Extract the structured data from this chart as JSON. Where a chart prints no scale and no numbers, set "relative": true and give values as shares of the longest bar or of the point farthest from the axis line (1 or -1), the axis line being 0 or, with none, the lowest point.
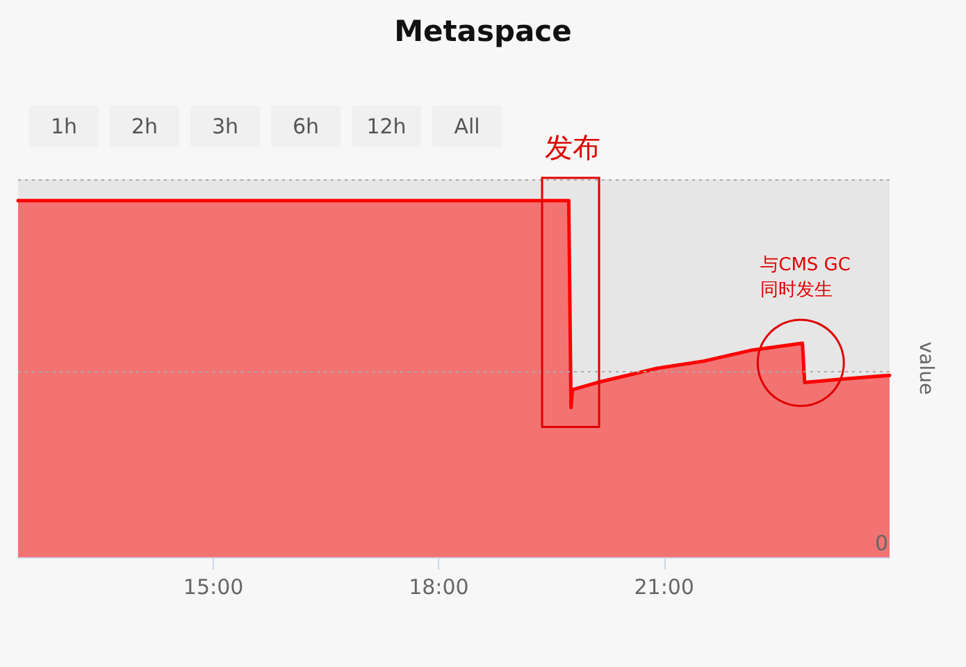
{
  "chart_data": {
    "type": "area",
    "title": "Metaspace",
    "ylabel": "value",
    "relative": true,
    "x": [
      12.4,
      19.73,
      19.76,
      19.78,
      20.11,
      20.91,
      21.53,
      22.15,
      22.84,
      22.87,
      23.38,
      24.0
    ],
    "values": [
      1.0,
      1.0,
      0.42,
      0.47,
      0.49,
      0.53,
      0.55,
      0.58,
      0.6,
      0.49,
      0.5,
      0.51
    ],
    "color": "#ff0000",
    "xlim": [
      12.4,
      24.0
    ],
    "xticks": [
      {
        "value": 15,
        "label": "15:00"
      },
      {
        "value": 18,
        "label": "18:00"
      },
      {
        "value": 21,
        "label": "21:00"
      }
    ],
    "marker": "none",
    "ref_lines": [
      {
        "axis": "y",
        "value": 0.52,
        "line_style": "dotted",
        "color": "#aaaaaa"
      },
      {
        "axis": "y",
        "value": 1.06,
        "line_style": "dotted",
        "color": "#aaaaaa"
      }
    ],
    "annotations": [
      "1h",
      "2h",
      "3h",
      "6h",
      "12h",
      "All",
      "发布",
      "与CMS GC\n同时发生",
      {
        "text": "0",
        "y": 0
      }
    ]
  }
}
